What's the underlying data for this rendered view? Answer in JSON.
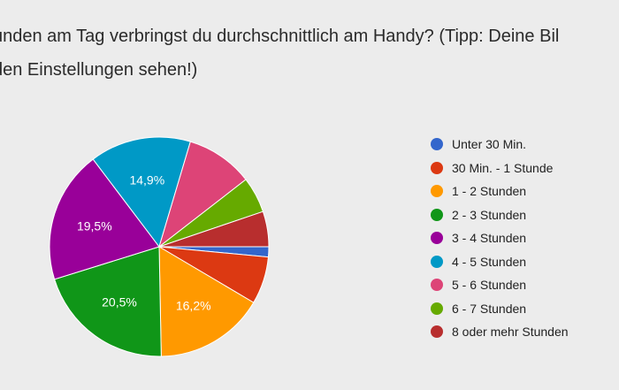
{
  "question": {
    "line1": "unden am Tag verbringst du durchschnittlich am Handy? (Tipp: Deine Bil",
    "line2": " den Einstellungen sehen!)"
  },
  "chart_data": {
    "type": "pie",
    "legend_position": "right",
    "start": "3 o'clock, clockwise",
    "slices": [
      {
        "label": "Unter 30 Min.",
        "value": 1.5,
        "color": "#3366cc",
        "data_label": ""
      },
      {
        "label": "30 Min. - 1 Stunde",
        "value": 7.0,
        "color": "#dc3912",
        "data_label": ""
      },
      {
        "label": "1 - 2 Stunden",
        "value": 16.2,
        "color": "#ff9900",
        "data_label": "16,2%"
      },
      {
        "label": "2 - 3 Stunden",
        "value": 20.5,
        "color": "#109618",
        "data_label": "20,5%"
      },
      {
        "label": "3 - 4 Stunden",
        "value": 19.5,
        "color": "#990099",
        "data_label": "19,5%"
      },
      {
        "label": "4 - 5 Stunden",
        "value": 14.9,
        "color": "#0099c6",
        "data_label": "14,9%"
      },
      {
        "label": "5 - 6 Stunden",
        "value": 9.9,
        "color": "#dd4477",
        "data_label": ""
      },
      {
        "label": "6 - 7 Stunden",
        "value": 5.3,
        "color": "#66aa00",
        "data_label": ""
      },
      {
        "label": "8 oder mehr Stunden",
        "value": 5.2,
        "color": "#b82e2e",
        "data_label": ""
      }
    ]
  }
}
